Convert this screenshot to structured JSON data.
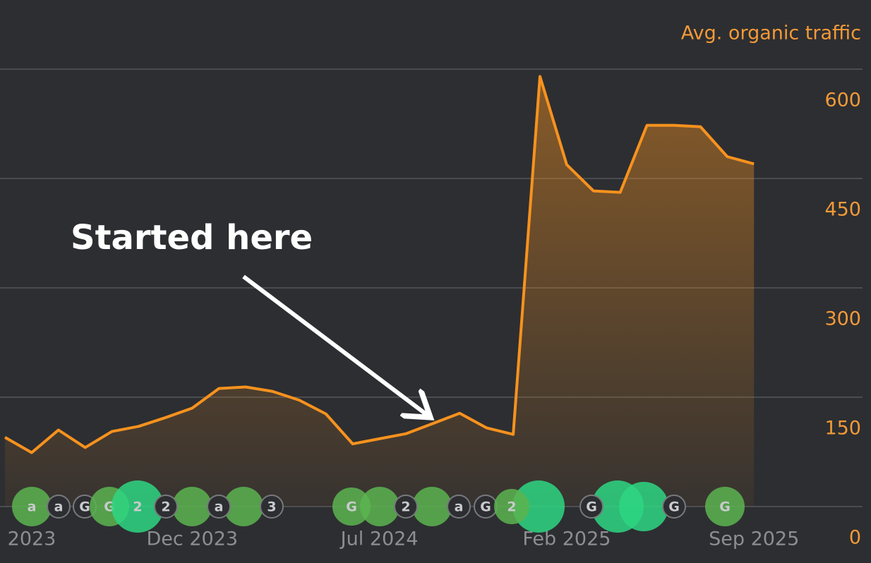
{
  "chart_data": {
    "type": "line",
    "y_axis_title": "Avg. organic traffic",
    "annotation": "Started here",
    "categories": [
      null,
      "2023",
      null,
      null,
      null,
      null,
      null,
      "Dec 2023",
      null,
      null,
      null,
      null,
      null,
      null,
      "Jul 2024",
      null,
      null,
      null,
      null,
      null,
      null,
      "Feb 2025",
      null,
      null,
      null,
      null,
      null,
      null,
      "Sep 2025"
    ],
    "series": [
      {
        "name": "Avg. organic traffic",
        "color": "#f7921e",
        "values": [
          95,
          74,
          105,
          81,
          103,
          110,
          122,
          135,
          162,
          164,
          158,
          146,
          127,
          86,
          93,
          100,
          114,
          128,
          108,
          99,
          590,
          469,
          433,
          431,
          523,
          523,
          521,
          480,
          470
        ]
      }
    ],
    "ylim": [
      0,
      600
    ],
    "yticks": [
      0,
      150,
      300,
      450,
      600
    ],
    "grid": true,
    "markers": [
      "a",
      "a",
      "G",
      "G",
      "2",
      "2",
      "a",
      "3",
      "G",
      "2",
      "a",
      "G",
      "2",
      "G",
      "G",
      "G"
    ]
  }
}
